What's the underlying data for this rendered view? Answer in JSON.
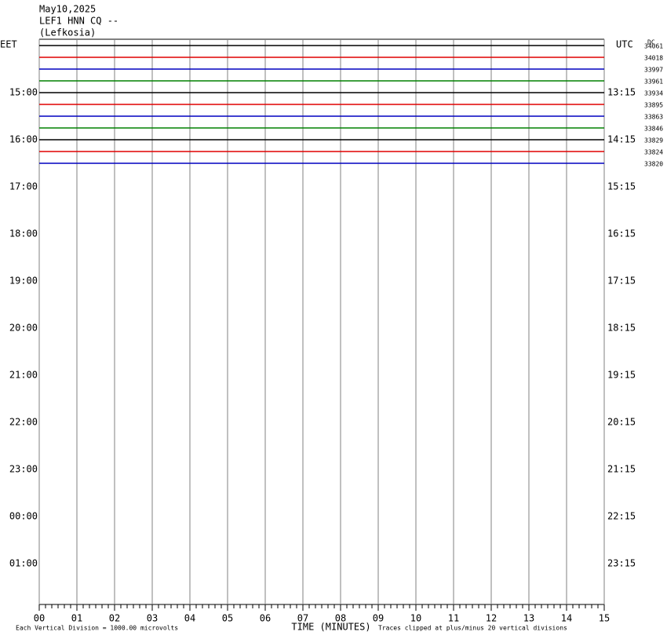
{
  "chart_data": {
    "type": "helicorder",
    "title": [
      "May10,2025",
      "LEF1 HNN CQ --",
      "(Lefkosia)"
    ],
    "left_axis_label": "EET",
    "right_axis_label": "UTC",
    "dc_label": "DC",
    "eet_labels": [
      null,
      "15:00",
      "16:00",
      "17:00",
      "18:00",
      "19:00",
      "20:00",
      "21:00",
      "22:00",
      "23:00",
      "00:00",
      "01:00"
    ],
    "utc_labels": [
      null,
      "13:15",
      "14:15",
      "15:15",
      "16:15",
      "17:15",
      "18:15",
      "19:15",
      "20:15",
      "21:15",
      "22:15",
      "23:15"
    ],
    "traces": [
      {
        "color": "#000000",
        "dc": 34061
      },
      {
        "color": "#e00000",
        "dc": 34018
      },
      {
        "color": "#0000c0",
        "dc": 33997
      },
      {
        "color": "#008000",
        "dc": 33961
      },
      {
        "color": "#000000",
        "dc": 33934
      },
      {
        "color": "#e00000",
        "dc": 33895
      },
      {
        "color": "#0000c0",
        "dc": 33863
      },
      {
        "color": "#008000",
        "dc": 33846
      },
      {
        "color": "#000000",
        "dc": 33829
      },
      {
        "color": "#e00000",
        "dc": 33824
      },
      {
        "color": "#0000c0",
        "dc": 33820
      }
    ],
    "xlim": [
      0,
      15
    ],
    "xticks": [
      {
        "value": 0,
        "label": "00"
      },
      {
        "value": 1,
        "label": "01"
      },
      {
        "value": 2,
        "label": "02"
      },
      {
        "value": 3,
        "label": "03"
      },
      {
        "value": 4,
        "label": "04"
      },
      {
        "value": 5,
        "label": "05"
      },
      {
        "value": 6,
        "label": "06"
      },
      {
        "value": 7,
        "label": "07"
      },
      {
        "value": 8,
        "label": "08"
      },
      {
        "value": 9,
        "label": "09"
      },
      {
        "value": 10,
        "label": "10"
      },
      {
        "value": 11,
        "label": "11"
      },
      {
        "value": 12,
        "label": "12"
      },
      {
        "value": 13,
        "label": "13"
      },
      {
        "value": 14,
        "label": "14"
      },
      {
        "value": 15,
        "label": "15"
      }
    ],
    "xlabel": "TIME (MINUTES)",
    "scale_note": "Each Vertical Division = 1000.00 microvolts",
    "clip_note": "Traces clipped at plus/minus 20 vertical divisions"
  }
}
